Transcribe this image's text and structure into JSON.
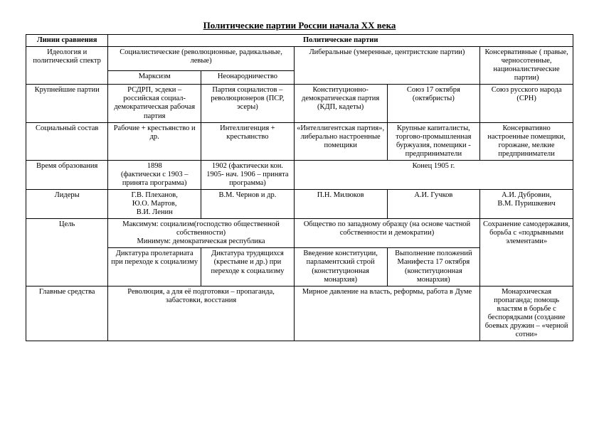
{
  "title": "Политические партии России начала XX века",
  "header": {
    "col0": "Линии сравнения",
    "col_parties": "Политические партии"
  },
  "row_ideology": {
    "label": "Идеология и политический спектр",
    "socialist": "Социалистические (революционные, радикальные, левые)",
    "liberal": "Либеральные (умеренные, центристские партии)",
    "conservative": "Консервативные ( правые, черносотенные, националистические партии)",
    "marxism": "Марксизм",
    "neonarod": "Неонародничество"
  },
  "row_major": {
    "label": "Крупнейшие партии",
    "c1": "РСДРП, эсдеки – российская социал-демократическая рабочая партия",
    "c2": "Партия социалистов – революционеров (ПСР, эсеры)",
    "c3": "Конституционно-демократическая партия (КДП, кадеты)",
    "c4": "Союз 17 октября (октябристы)",
    "c5": "Союз русского народа (СРН)"
  },
  "row_social": {
    "label": "Социальный состав",
    "c1": "Рабочие + крестьянство и др.",
    "c2": "Интеллигенция + крестьянство",
    "c3": "«Интеллигентская партия», либерально настроенные помещики",
    "c4": "Крупные капиталисты, торгово-промышленная буржуазия, помещики - предприниматели",
    "c5": "Консервативно настроенные помещики, горожане, мелкие предприниматели"
  },
  "row_time": {
    "label": "Время образования",
    "c1": "1898\n(фактически с 1903 – принята программа)",
    "c2": "1902 (фактически кон. 1905- нач. 1906 – принята программа)",
    "c34": "Конец 1905 г.",
    "c5_empty": ""
  },
  "row_leaders": {
    "label": "Лидеры",
    "c1": "Г.В. Плеханов,\nЮ.О. Мартов,\nВ.И. Ленин",
    "c2": "В.М. Чернов и др.",
    "c3": "П.Н. Милюков",
    "c4": "А.И. Гучков",
    "c5": "А.И. Дубровин,\nВ.М. Пуришкевич"
  },
  "row_goal": {
    "label": "Цель",
    "top12": "Максимум: социализм(господство общественной собственности)\nМинимум: демократическая республика",
    "top34": "Общество по западному образцу (на основе частной собственности и демократии)",
    "c5": "Сохранение самодержавия, борьба с «подрывными элементами»",
    "bot1": "Диктатура пролетариата при переходе к социализму",
    "bot2": "Диктатура трудящихся (крестьяне и др.) при переходе к социализму",
    "bot3": "Введение конституции, парламентский строй (конституционная монархия)",
    "bot4": "Выполнение положений Манифеста 17 октября (конституционная монархия)"
  },
  "row_means": {
    "label": "Главные средства",
    "c12": "Революция, а для её подготовки – пропаганда, забастовки, восстания",
    "c34": "Мирное давление на власть, реформы, работа в Думе",
    "c5": "Монархическая пропаганда;  помощь властям в борьбе с беспорядками (создание боевых дружин – «черной сотни»"
  }
}
